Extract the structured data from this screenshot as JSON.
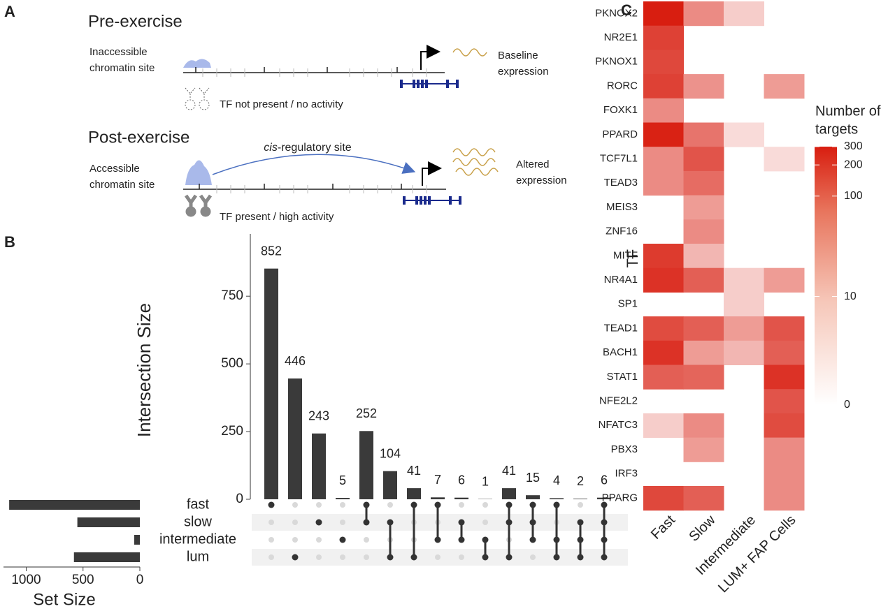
{
  "panel_labels": [
    "A",
    "B",
    "C"
  ],
  "diagram": {
    "pre": {
      "title": "Pre-exercise",
      "site_label": [
        "Inaccessible",
        "chromatin site"
      ],
      "expression_label": [
        "Baseline",
        "expression"
      ],
      "tf_label": "TF not present / no activity"
    },
    "post": {
      "title": "Post-exercise",
      "site_label": [
        "Accessible",
        "chromatin site"
      ],
      "link_label_italic": "cis",
      "link_label_rest": "-regulatory site",
      "expression_label": [
        "Altered",
        "expression"
      ],
      "tf_label": "TF present / high activity"
    }
  },
  "chart_data": [
    {
      "type": "upset",
      "y_label": "Intersection Size",
      "color": "#3a3a3a",
      "values": [
        852,
        446,
        243,
        5,
        252,
        104,
        41,
        7,
        6,
        1,
        41,
        15,
        4,
        2,
        6
      ],
      "intersections": [
        [
          0
        ],
        [
          3
        ],
        [
          1
        ],
        [
          2
        ],
        [
          0,
          1
        ],
        [
          1,
          3
        ],
        [
          0,
          3
        ],
        [
          0,
          2
        ],
        [
          1,
          2
        ],
        [
          2,
          3
        ],
        [
          0,
          1,
          3
        ],
        [
          0,
          1,
          2
        ],
        [
          0,
          2,
          3
        ],
        [
          1,
          2,
          3
        ],
        [
          0,
          1,
          2,
          3
        ]
      ],
      "ylim": [
        0,
        980
      ],
      "yticks": [
        0,
        250,
        500,
        750
      ]
    },
    {
      "type": "hbar",
      "x_label": "Set Size",
      "color": "#3a3a3a",
      "categories": [
        "fast",
        "slow",
        "intermediate",
        "lum"
      ],
      "values": [
        1150,
        550,
        50,
        580
      ],
      "xlim": [
        1200,
        0
      ],
      "xticks": [
        1000,
        500,
        0
      ]
    },
    {
      "type": "heatmap",
      "y_label": "TF",
      "x_categories": [
        "Fast",
        "Slow",
        "Intermediate",
        "LUM+ FAP Cells"
      ],
      "y_categories": [
        "PKNOX2",
        "NR2E1",
        "PKNOX1",
        "RORC",
        "FOXK1",
        "PPARD",
        "TCF7L1",
        "TEAD3",
        "MEIS3",
        "ZNF16",
        "MITF",
        "NR4A1",
        "SP1",
        "TEAD1",
        "BACH1",
        "STAT1",
        "NFE2L2",
        "NFATC3",
        "PBX3",
        "IRF3",
        "PPARG"
      ],
      "values": [
        [
          300,
          30,
          5,
          null
        ],
        [
          150,
          null,
          null,
          null
        ],
        [
          130,
          null,
          null,
          null
        ],
        [
          150,
          25,
          null,
          20
        ],
        [
          30,
          null,
          null,
          null
        ],
        [
          280,
          50,
          3,
          null
        ],
        [
          30,
          100,
          null,
          3
        ],
        [
          30,
          60,
          null,
          null
        ],
        [
          null,
          20,
          null,
          null
        ],
        [
          null,
          30,
          null,
          null
        ],
        [
          170,
          10,
          null,
          null
        ],
        [
          200,
          80,
          5,
          20
        ],
        [
          null,
          null,
          5,
          null
        ],
        [
          120,
          80,
          20,
          100
        ],
        [
          200,
          20,
          10,
          80
        ],
        [
          80,
          70,
          null,
          200
        ],
        [
          null,
          null,
          null,
          100
        ],
        [
          5,
          30,
          null,
          120
        ],
        [
          null,
          20,
          null,
          30
        ],
        [
          null,
          null,
          null,
          30
        ],
        [
          130,
          80,
          null,
          30
        ]
      ],
      "colorbar_title": [
        "Number of",
        "targets"
      ],
      "colorbar_ticks": [
        0,
        10,
        100,
        200,
        300
      ],
      "color_scale": "log1p",
      "color_low": "#ffffff",
      "color_high": "#d81e10"
    }
  ]
}
